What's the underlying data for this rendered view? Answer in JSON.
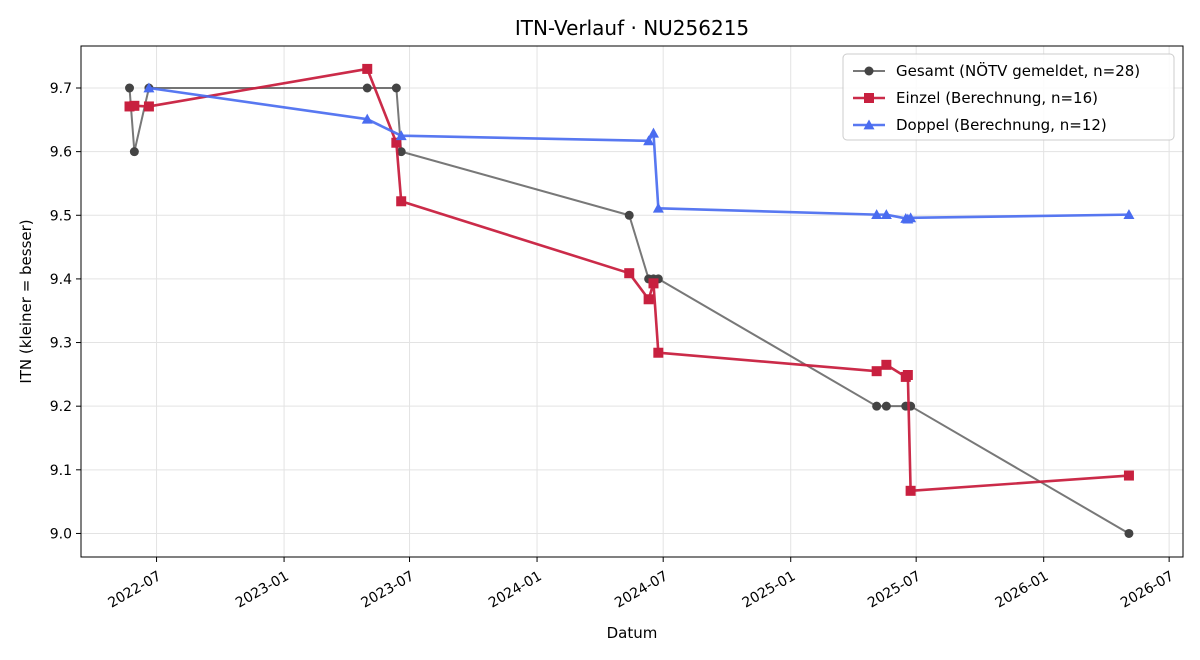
{
  "chart_data": {
    "type": "line",
    "title": "ITN-Verlauf · NU256215",
    "xlabel": "Datum",
    "ylabel": "ITN  (kleiner = besser)",
    "x_ticks": [
      "2022-07",
      "2023-01",
      "2023-07",
      "2024-01",
      "2024-07",
      "2025-01",
      "2025-07",
      "2026-01",
      "2026-07"
    ],
    "y_ticks": [
      "9.0",
      "9.1",
      "9.2",
      "9.3",
      "9.4",
      "9.5",
      "9.6",
      "9.7"
    ],
    "xlim": [
      "2022-03-14",
      "2026-07-21"
    ],
    "ylim": [
      8.963,
      9.766
    ],
    "grid": true,
    "legend_position": "top-right",
    "series": [
      {
        "name": "Gesamt (NÖTV gemeldet, n=28)",
        "color": "#444444",
        "marker": "circle",
        "points": [
          [
            "2022-05-23",
            9.7
          ],
          [
            "2022-05-30",
            9.6
          ],
          [
            "2022-06-20",
            9.7
          ],
          [
            "2023-05-01",
            9.7
          ],
          [
            "2023-06-12",
            9.7
          ],
          [
            "2023-06-19",
            9.6
          ],
          [
            "2024-05-13",
            9.5
          ],
          [
            "2024-06-10",
            9.4
          ],
          [
            "2024-06-17",
            9.4
          ],
          [
            "2024-06-24",
            9.4
          ],
          [
            "2025-05-05",
            9.2
          ],
          [
            "2025-05-19",
            9.2
          ],
          [
            "2025-06-16",
            9.2
          ],
          [
            "2025-06-23",
            9.2
          ],
          [
            "2026-05-04",
            9.0
          ]
        ]
      },
      {
        "name": "Einzel (Berechnung, n=16)",
        "color": "#c8203f",
        "marker": "square",
        "points": [
          [
            "2022-05-23",
            9.671
          ],
          [
            "2022-05-30",
            9.672
          ],
          [
            "2022-06-20",
            9.671
          ],
          [
            "2023-05-01",
            9.73
          ],
          [
            "2023-06-12",
            9.614
          ],
          [
            "2023-06-19",
            9.522
          ],
          [
            "2024-05-13",
            9.409
          ],
          [
            "2024-06-10",
            9.368
          ],
          [
            "2024-06-17",
            9.393
          ],
          [
            "2024-06-24",
            9.284
          ],
          [
            "2025-05-05",
            9.255
          ],
          [
            "2025-05-19",
            9.265
          ],
          [
            "2025-06-16",
            9.246
          ],
          [
            "2025-06-19",
            9.249
          ],
          [
            "2025-06-23",
            9.067
          ],
          [
            "2026-05-04",
            9.091
          ]
        ]
      },
      {
        "name": "Doppel (Berechnung, n=12)",
        "color": "#4a6cf0",
        "marker": "triangle",
        "points": [
          [
            "2022-06-20",
            9.7
          ],
          [
            "2023-05-01",
            9.651
          ],
          [
            "2023-06-19",
            9.625
          ],
          [
            "2024-06-10",
            9.617
          ],
          [
            "2024-06-17",
            9.629
          ],
          [
            "2024-06-24",
            9.511
          ],
          [
            "2025-05-05",
            9.501
          ],
          [
            "2025-05-19",
            9.501
          ],
          [
            "2025-06-16",
            9.495
          ],
          [
            "2025-06-19",
            9.494
          ],
          [
            "2025-06-23",
            9.496
          ],
          [
            "2026-05-04",
            9.501
          ]
        ]
      }
    ]
  }
}
